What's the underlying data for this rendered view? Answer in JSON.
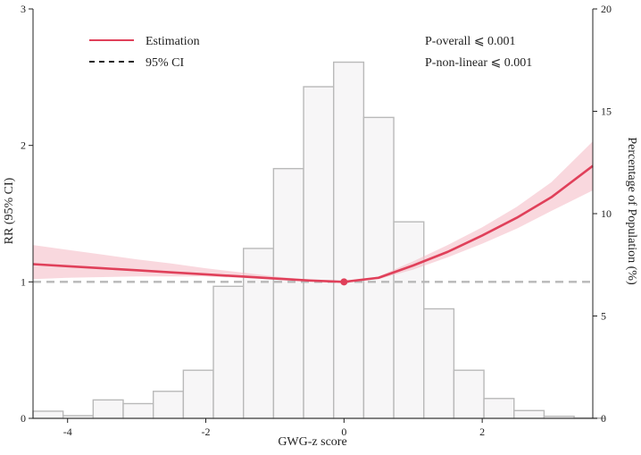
{
  "chart_data": {
    "type": "line",
    "xlabel": "GWG-z score",
    "ylabel": "RR (95% CI)",
    "y2label": "Percentage of Population (%)",
    "xlim": [
      -4.5,
      3.6
    ],
    "ylim": [
      0,
      3
    ],
    "y2lim": [
      0,
      20
    ],
    "x_ticks": [
      -4,
      -2,
      0,
      2
    ],
    "y_ticks": [
      0,
      1,
      2,
      3
    ],
    "y2_ticks": [
      0,
      5,
      10,
      15,
      20
    ],
    "reference_line": 1,
    "reference_point": {
      "x": 0,
      "y": 1
    },
    "legend": {
      "position": "top-left",
      "items": [
        {
          "label": "Estimation",
          "style": "solid",
          "color": "#e0405a"
        },
        {
          "label": "95% CI",
          "style": "dashed",
          "color": "#222222"
        }
      ]
    },
    "annotations": [
      "P-overall ⩽  0.001",
      "P-non-linear ⩽ 0.001"
    ],
    "series": [
      {
        "name": "Estimation",
        "x": [
          -4.5,
          -4.0,
          -3.5,
          -3.0,
          -2.5,
          -2.0,
          -1.5,
          -1.0,
          -0.5,
          0.0,
          0.5,
          1.0,
          1.5,
          2.0,
          2.5,
          3.0,
          3.6
        ],
        "y": [
          1.13,
          1.115,
          1.1,
          1.085,
          1.07,
          1.055,
          1.04,
          1.025,
          1.01,
          1.0,
          1.03,
          1.12,
          1.22,
          1.34,
          1.47,
          1.62,
          1.85
        ],
        "lower": [
          1.02,
          1.03,
          1.035,
          1.04,
          1.04,
          1.04,
          1.03,
          1.02,
          1.005,
          1.0,
          1.02,
          1.09,
          1.18,
          1.28,
          1.39,
          1.52,
          1.67
        ],
        "upper": [
          1.27,
          1.235,
          1.2,
          1.165,
          1.135,
          1.1,
          1.07,
          1.04,
          1.015,
          1.0,
          1.04,
          1.15,
          1.27,
          1.4,
          1.55,
          1.73,
          2.03
        ]
      }
    ],
    "histogram": {
      "bin_width": 0.435,
      "bins_left": [
        -4.5,
        -4.065,
        -3.63,
        -3.195,
        -2.76,
        -2.325,
        -1.89,
        -1.455,
        -1.02,
        -0.585,
        -0.15,
        0.285,
        0.72,
        1.155,
        1.59,
        2.025,
        2.46,
        2.895,
        3.33
      ],
      "values": [
        0.35,
        0.13,
        0.9,
        0.72,
        1.32,
        2.35,
        6.45,
        8.3,
        12.2,
        16.2,
        17.4,
        14.7,
        9.6,
        5.35,
        2.35,
        0.97,
        0.38,
        0.1,
        0.02
      ]
    }
  }
}
